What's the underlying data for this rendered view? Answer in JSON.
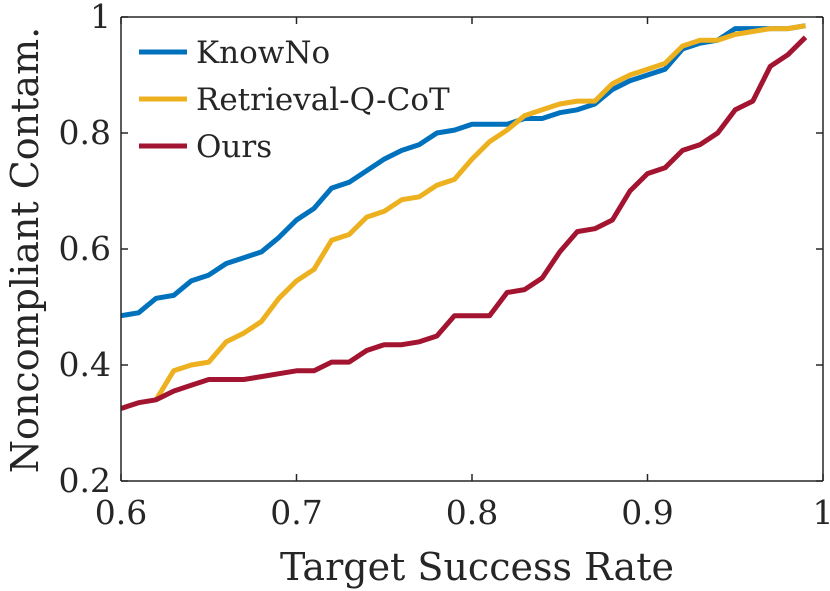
{
  "chart_data": {
    "type": "line",
    "title": "",
    "xlabel": "Target Success Rate",
    "ylabel": "Noncompliant Contam.",
    "xlim": [
      0.6,
      1.0
    ],
    "ylim": [
      0.2,
      1.0
    ],
    "xticks": [
      0.6,
      0.7,
      0.8,
      0.9,
      1.0
    ],
    "xtick_labels": [
      "0.6",
      "0.7",
      "0.8",
      "0.9",
      "1"
    ],
    "yticks": [
      0.2,
      0.4,
      0.6,
      0.8,
      1.0
    ],
    "ytick_labels": [
      "0.2",
      "0.4",
      "0.6",
      "0.8",
      "1"
    ],
    "grid": false,
    "legend_position": "top-left",
    "x": [
      0.6,
      0.61,
      0.62,
      0.63,
      0.64,
      0.65,
      0.66,
      0.67,
      0.68,
      0.69,
      0.7,
      0.71,
      0.72,
      0.73,
      0.74,
      0.75,
      0.76,
      0.77,
      0.78,
      0.79,
      0.8,
      0.81,
      0.82,
      0.83,
      0.84,
      0.85,
      0.86,
      0.87,
      0.88,
      0.89,
      0.9,
      0.91,
      0.92,
      0.93,
      0.94,
      0.95,
      0.96,
      0.97,
      0.98,
      0.99
    ],
    "series": [
      {
        "name": "KnowNo",
        "color": "#0072BD",
        "values": [
          0.485,
          0.49,
          0.515,
          0.52,
          0.545,
          0.555,
          0.575,
          0.585,
          0.595,
          0.62,
          0.65,
          0.67,
          0.705,
          0.715,
          0.735,
          0.755,
          0.77,
          0.78,
          0.8,
          0.805,
          0.815,
          0.815,
          0.815,
          0.825,
          0.825,
          0.835,
          0.84,
          0.85,
          0.875,
          0.89,
          0.9,
          0.91,
          0.945,
          0.955,
          0.96,
          0.98,
          0.98,
          0.98,
          0.98,
          0.985
        ]
      },
      {
        "name": "Retrieval-Q-CoT",
        "color": "#EDB120",
        "values": [
          null,
          null,
          0.34,
          0.39,
          0.4,
          0.405,
          0.44,
          0.455,
          0.475,
          0.515,
          0.545,
          0.565,
          0.615,
          0.625,
          0.655,
          0.665,
          0.685,
          0.69,
          0.71,
          0.72,
          0.755,
          0.785,
          0.805,
          0.83,
          0.84,
          0.85,
          0.855,
          0.855,
          0.885,
          0.9,
          0.91,
          0.92,
          0.95,
          0.96,
          0.96,
          0.97,
          0.975,
          0.98,
          0.98,
          0.985
        ]
      },
      {
        "name": "Ours",
        "color": "#A2142F",
        "values": [
          0.325,
          0.335,
          0.34,
          0.355,
          0.365,
          0.375,
          0.375,
          0.375,
          0.38,
          0.385,
          0.39,
          0.39,
          0.405,
          0.405,
          0.425,
          0.435,
          0.435,
          0.44,
          0.45,
          0.485,
          0.485,
          0.485,
          0.525,
          0.53,
          0.55,
          0.595,
          0.63,
          0.635,
          0.65,
          0.7,
          0.73,
          0.74,
          0.77,
          0.78,
          0.8,
          0.84,
          0.855,
          0.915,
          0.935,
          0.965
        ]
      }
    ]
  }
}
